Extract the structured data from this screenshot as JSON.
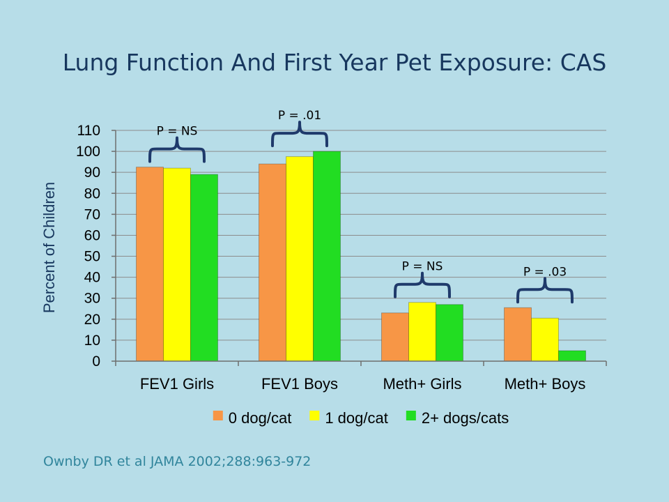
{
  "slide": {
    "title": "Lung Function And First Year Pet Exposure: CAS",
    "citation": "Ownby DR et al  JAMA 2002;288:963-972"
  },
  "chart_data": {
    "type": "bar",
    "title": "",
    "xlabel": "",
    "ylabel": "Percent of Children",
    "ylim": [
      0,
      110
    ],
    "yticks": [
      0,
      10,
      20,
      30,
      40,
      50,
      60,
      70,
      80,
      90,
      100,
      110
    ],
    "grid": true,
    "legend_position": "bottom",
    "categories": [
      "FEV1 Girls",
      "FEV1 Boys",
      "Meth+ Girls",
      "Meth+ Boys"
    ],
    "series": [
      {
        "name": "0 dog/cat",
        "color": "#f79646",
        "values": [
          92.5,
          94,
          23,
          25.5
        ]
      },
      {
        "name": "1 dog/cat",
        "color": "#ffff00",
        "values": [
          92,
          97.5,
          28,
          20.5
        ]
      },
      {
        "name": "2+ dogs/cats",
        "color": "#22dd22",
        "values": [
          89,
          100,
          27,
          5
        ]
      }
    ],
    "annotations": [
      {
        "category": "FEV1 Girls",
        "text": "P = NS"
      },
      {
        "category": "FEV1 Boys",
        "text": "P = .01"
      },
      {
        "category": "Meth+ Girls",
        "text": "P = NS"
      },
      {
        "category": "Meth+ Boys",
        "text": "P = .03"
      }
    ]
  }
}
